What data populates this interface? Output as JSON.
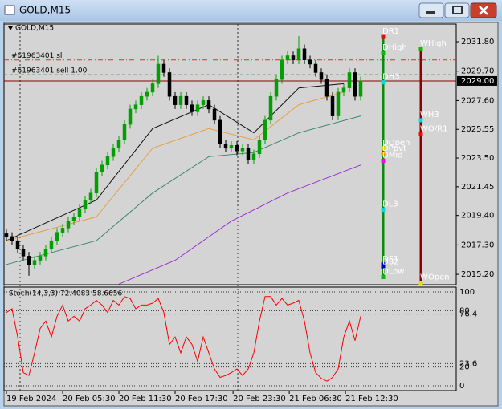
{
  "window_title": "GOLD,M15",
  "chart_data": {
    "type": "candlestick",
    "title": "GOLD,M15",
    "x": [
      0,
      1,
      2,
      3,
      4,
      5,
      6,
      7,
      8,
      9,
      10,
      11,
      12,
      13,
      14,
      15,
      16,
      17,
      18,
      19,
      20,
      21,
      22,
      23,
      24,
      25,
      26,
      27,
      28,
      29,
      30,
      31,
      32,
      33,
      34,
      35,
      36,
      37,
      38,
      39,
      40,
      41,
      42,
      43,
      44,
      45,
      46,
      47,
      48,
      49,
      50,
      51,
      52,
      53,
      54,
      55,
      56,
      57,
      58,
      59,
      60,
      61,
      62,
      63
    ],
    "open": [
      2018.1,
      2017.9,
      2017.6,
      2017.0,
      2016.5,
      2015.9,
      2016.2,
      2016.5,
      2017.0,
      2017.6,
      2018.2,
      2018.5,
      2019.0,
      2019.3,
      2019.9,
      2020.5,
      2021.0,
      2022.5,
      2023.0,
      2023.6,
      2024.2,
      2024.8,
      2025.9,
      2027.0,
      2027.3,
      2027.9,
      2028.2,
      2028.8,
      2030.2,
      2029.6,
      2027.9,
      2027.3,
      2027.9,
      2027.3,
      2026.8,
      2027.3,
      2027.6,
      2027.0,
      2026.2,
      2024.5,
      2024.2,
      2024.4,
      2024.0,
      2024.2,
      2023.4,
      2023.8,
      2024.8,
      2026.2,
      2027.9,
      2029.1,
      2030.5,
      2030.8,
      2030.5,
      2031.3,
      2030.5,
      2030.2,
      2029.6,
      2029.1,
      2027.9,
      2026.5,
      2028.2,
      2028.5,
      2029.6,
      2027.9
    ],
    "high": [
      2018.4,
      2018.2,
      2017.9,
      2017.3,
      2016.8,
      2016.5,
      2016.8,
      2017.3,
      2017.9,
      2018.5,
      2018.8,
      2019.3,
      2019.6,
      2020.2,
      2020.8,
      2021.3,
      2022.8,
      2023.3,
      2023.9,
      2024.5,
      2025.1,
      2026.2,
      2027.3,
      2027.6,
      2028.2,
      2028.5,
      2029.1,
      2030.8,
      2030.5,
      2029.9,
      2028.2,
      2028.2,
      2028.2,
      2027.6,
      2027.6,
      2027.9,
      2027.9,
      2027.3,
      2026.5,
      2024.8,
      2024.7,
      2024.7,
      2024.5,
      2024.5,
      2024.1,
      2025.1,
      2026.5,
      2028.2,
      2029.4,
      2030.8,
      2031.1,
      2031.1,
      2032.2,
      2031.6,
      2030.8,
      2030.5,
      2029.9,
      2029.4,
      2028.2,
      2028.5,
      2028.8,
      2029.9,
      2029.9,
      2029.3
    ],
    "low": [
      2017.6,
      2017.3,
      2016.7,
      2016.2,
      2015.1,
      2015.6,
      2015.9,
      2016.2,
      2016.7,
      2017.3,
      2017.9,
      2018.2,
      2018.7,
      2019.0,
      2019.6,
      2020.2,
      2020.7,
      2022.2,
      2022.7,
      2023.3,
      2023.9,
      2024.5,
      2025.6,
      2026.7,
      2027.0,
      2027.6,
      2027.9,
      2028.5,
      2029.3,
      2027.6,
      2027.0,
      2027.0,
      2027.0,
      2026.5,
      2026.5,
      2027.0,
      2026.7,
      2025.9,
      2024.2,
      2023.9,
      2023.9,
      2023.7,
      2023.7,
      2023.1,
      2023.1,
      2023.5,
      2024.5,
      2025.9,
      2027.6,
      2028.8,
      2030.2,
      2030.2,
      2030.2,
      2030.2,
      2029.9,
      2029.3,
      2028.8,
      2027.6,
      2026.2,
      2026.2,
      2027.9,
      2028.2,
      2027.6,
      2027.6
    ],
    "close": [
      2017.9,
      2017.6,
      2017.0,
      2016.5,
      2015.9,
      2016.2,
      2016.5,
      2017.0,
      2017.6,
      2018.2,
      2018.5,
      2019.0,
      2019.3,
      2019.9,
      2020.5,
      2021.0,
      2022.5,
      2023.0,
      2023.6,
      2024.2,
      2024.8,
      2025.9,
      2027.0,
      2027.3,
      2027.9,
      2028.2,
      2028.8,
      2030.2,
      2029.6,
      2027.9,
      2027.3,
      2027.9,
      2027.3,
      2026.8,
      2027.3,
      2027.6,
      2027.0,
      2026.2,
      2024.5,
      2024.2,
      2024.4,
      2024.0,
      2024.2,
      2023.4,
      2023.8,
      2024.8,
      2026.2,
      2027.9,
      2029.1,
      2030.5,
      2030.8,
      2030.5,
      2031.3,
      2030.5,
      2030.2,
      2029.6,
      2029.1,
      2027.9,
      2026.5,
      2028.2,
      2028.5,
      2029.6,
      2027.9,
      2029.0
    ],
    "up_color": "#00a000",
    "down_color": "#000000",
    "xlim": [
      -0.43,
      80
    ],
    "xticks": [
      {
        "value": 0,
        "label": "19 Feb 2024"
      },
      {
        "value": 10,
        "label": "20 Feb 05:30"
      },
      {
        "value": 20,
        "label": "20 Feb 11:30"
      },
      {
        "value": 30,
        "label": "20 Feb 17:30"
      },
      {
        "value": 40.3,
        "label": "20 Feb 23:30"
      },
      {
        "value": 50.3,
        "label": "21 Feb 06:30"
      },
      {
        "value": 60.3,
        "label": "21 Feb 12:30"
      }
    ],
    "ylim": [
      2014.46,
      2033.06
    ],
    "yticks": [
      {
        "value": 2031.8,
        "label": "2031.80"
      },
      {
        "value": 2029.7,
        "label": "2029.70"
      },
      {
        "value": 2027.6,
        "label": "2027.60"
      },
      {
        "value": 2025.55,
        "label": "2025.55"
      },
      {
        "value": 2023.5,
        "label": "2023.50"
      },
      {
        "value": 2021.45,
        "label": "2021.45"
      },
      {
        "value": 2019.4,
        "label": "2019.40"
      },
      {
        "value": 2017.3,
        "label": "2017.30"
      },
      {
        "value": 2015.2,
        "label": "2015.20"
      }
    ],
    "current_price": {
      "value": 2029.0,
      "label": "2029.00"
    },
    "lines": [
      {
        "color": "#111111",
        "x": [
          0,
          16,
          26,
          36,
          44,
          52,
          60
        ],
        "values": [
          2017.6,
          2020.5,
          2025.6,
          2027.3,
          2025.3,
          2028.5,
          2028.8
        ]
      },
      {
        "color": "#e8a040",
        "x": [
          0,
          16,
          26,
          36,
          44,
          52,
          60
        ],
        "values": [
          2017.6,
          2019.3,
          2024.2,
          2025.6,
          2024.8,
          2027.3,
          2028.2
        ]
      },
      {
        "color": "#3a8a6a",
        "x": [
          0,
          16,
          26,
          36,
          44,
          52,
          63
        ],
        "values": [
          2015.9,
          2017.6,
          2021.0,
          2023.6,
          2023.9,
          2025.3,
          2026.5
        ]
      },
      {
        "color": "#9b30d0",
        "x": [
          20,
          30,
          40,
          50,
          63
        ],
        "values": [
          2014.5,
          2016.2,
          2019.0,
          2021.0,
          2023.0
        ]
      }
    ],
    "orders": [
      {
        "label": "#61963401 sl",
        "value": 2030.5,
        "color": "#e03030"
      },
      {
        "label": "#61963401 sell 1.00",
        "value": 2029.45,
        "color": "#3a9a3a"
      }
    ],
    "daily_pivots": [
      {
        "label": "DR1",
        "value": 2032.14,
        "color": "#ff0000"
      },
      {
        "label": "DHigh",
        "value": 2031.0,
        "color": "#00c000"
      },
      {
        "label": "DH3",
        "value": 2028.9,
        "color": "#00e0e0"
      },
      {
        "label": "DOpen",
        "value": 2024.2,
        "color": "#e0e000"
      },
      {
        "label": "DPpvt",
        "value": 2023.8,
        "color": "#ff9900"
      },
      {
        "label": "DMid",
        "value": 2023.3,
        "color": "#ff00ff"
      },
      {
        "label": "DL3",
        "value": 2019.8,
        "color": "#00e0e0"
      },
      {
        "label": "DS1",
        "value": 2015.9,
        "color": "#0000ff"
      },
      {
        "label": "DS2",
        "value": 2015.7,
        "color": "#0000aa"
      },
      {
        "label": "DLow",
        "value": 2015.0,
        "color": "#00c000"
      }
    ],
    "weekly_pivots": [
      {
        "label": "WHigh",
        "value": 2031.3,
        "color": "#00c000"
      },
      {
        "label": "WH3",
        "value": 2026.2,
        "color": "#00e0e0"
      },
      {
        "label": "WO/R1",
        "value": 2025.2,
        "color": "#ff0000"
      },
      {
        "label": "WOpen",
        "value": 2014.6,
        "color": "#e0e000"
      }
    ],
    "stochastic": {
      "title": "Stoch(14,3,3) 72.4083 58.6656",
      "color": "#ff0000",
      "values": [
        78,
        82,
        52,
        14,
        11,
        35,
        61,
        69,
        52,
        74,
        86,
        69,
        74,
        69,
        82,
        86,
        91,
        86,
        78,
        91,
        86,
        95,
        93,
        82,
        86,
        86,
        88,
        93,
        78,
        44,
        52,
        35,
        52,
        44,
        26,
        52,
        35,
        18,
        9,
        11,
        14,
        18,
        11,
        18,
        35,
        69,
        95,
        95,
        86,
        93,
        86,
        88,
        91,
        69,
        35,
        14,
        8,
        5,
        9,
        18,
        52,
        69,
        48,
        74
      ],
      "ylim": [
        -5.1,
        105.1
      ],
      "yticks": [
        100,
        80,
        76.4,
        23.6,
        20,
        0
      ]
    }
  }
}
